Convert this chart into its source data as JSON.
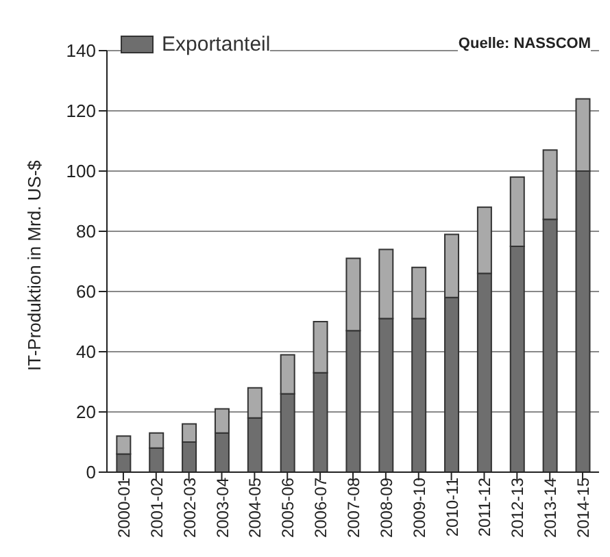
{
  "chart_data": {
    "type": "bar",
    "stacked": true,
    "ylabel": "IT-Produktion in Mrd. US-$",
    "categories": [
      "2000-01",
      "2001-02",
      "2002-03",
      "2003-04",
      "2004-05",
      "2005-06",
      "2006-07",
      "2007-08",
      "2008-09",
      "2009-10",
      "2010-11",
      "2011-12",
      "2012-13",
      "2013-14",
      "2014-15"
    ],
    "series": [
      {
        "name": "Exportanteil",
        "color": "#6e6e6e",
        "values": [
          6,
          8,
          10,
          13,
          18,
          26,
          33,
          47,
          51,
          51,
          58,
          66,
          75,
          84,
          100
        ]
      },
      {
        "color": "#a9a9a9",
        "values": [
          6,
          5,
          6,
          8,
          10,
          13,
          17,
          24,
          23,
          17,
          21,
          22,
          23,
          23,
          24
        ]
      }
    ],
    "ylim": [
      0,
      140
    ],
    "yticks": [
      0,
      20,
      40,
      60,
      80,
      100,
      120,
      140
    ],
    "grid": "y",
    "legend": "top left",
    "annotations": [
      "Quelle: NASSCOM"
    ]
  }
}
